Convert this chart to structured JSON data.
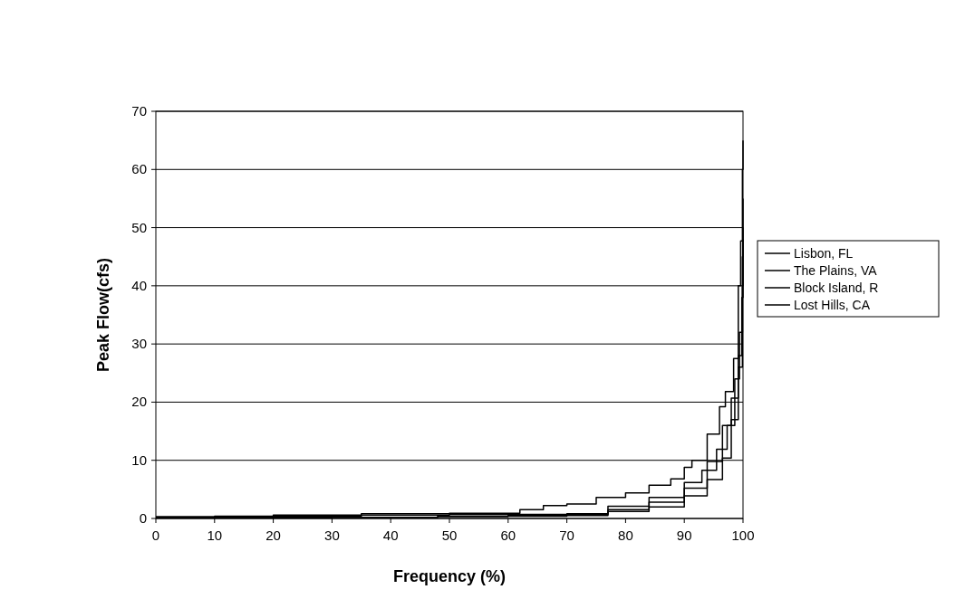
{
  "chart_data": {
    "type": "step",
    "xlabel": "Frequency (%)",
    "ylabel": "Peak Flow(cfs)",
    "xlim": [
      0,
      100
    ],
    "ylim": [
      0,
      70
    ],
    "xticks": [
      0,
      10,
      20,
      30,
      40,
      50,
      60,
      70,
      80,
      90,
      100
    ],
    "yticks": [
      0,
      10,
      20,
      30,
      40,
      50,
      60,
      70
    ],
    "grid": "y",
    "legend": "right",
    "marker": "none",
    "line_style": "solid",
    "series": [
      {
        "name": "Lisbon, FL",
        "color": "#000000",
        "x": [
          0,
          10,
          20,
          35,
          50,
          62,
          66,
          70,
          75,
          80,
          84,
          87.7,
          90,
          91.3,
          93.9,
          96,
          97,
          98.4,
          99.2,
          99.6,
          99.9,
          100
        ],
        "values": [
          0.3,
          0.4,
          0.6,
          0.8,
          0.9,
          1.5,
          2.2,
          2.5,
          3.6,
          4.4,
          5.7,
          6.8,
          8.8,
          10,
          14.5,
          19.2,
          21.8,
          27.5,
          40,
          47.7,
          60,
          65
        ]
      },
      {
        "name": "The Plains, VA",
        "color": "#000000",
        "x": [
          0,
          20,
          35,
          50,
          63,
          70,
          77,
          84,
          90,
          93,
          95.5,
          97.3,
          98.6,
          99.4,
          99.9,
          100
        ],
        "values": [
          0.2,
          0.4,
          0.6,
          0.7,
          0.7,
          0.8,
          2.1,
          3.6,
          6.2,
          8.3,
          11.9,
          16,
          24,
          32,
          40,
          50
        ]
      },
      {
        "name": "Block Island, R",
        "color": "#000000",
        "x": [
          0,
          20,
          48,
          60,
          70,
          77,
          84,
          90,
          93.9,
          96.5,
          98,
          99.2,
          99.8,
          100
        ],
        "values": [
          0.1,
          0.2,
          0.4,
          0.6,
          0.7,
          1.5,
          2.8,
          5.2,
          9.8,
          16,
          20.7,
          28,
          38,
          48
        ]
      },
      {
        "name": "Lost Hills, CA",
        "color": "#000000",
        "x": [
          0,
          30,
          48,
          60,
          70,
          77,
          84,
          90,
          93.9,
          96.5,
          98,
          99.2,
          99.9,
          100
        ],
        "values": [
          0.1,
          0.2,
          0.3,
          0.4,
          0.5,
          1.2,
          2,
          3.9,
          6.7,
          10.4,
          17,
          26,
          45,
          55
        ]
      }
    ]
  }
}
